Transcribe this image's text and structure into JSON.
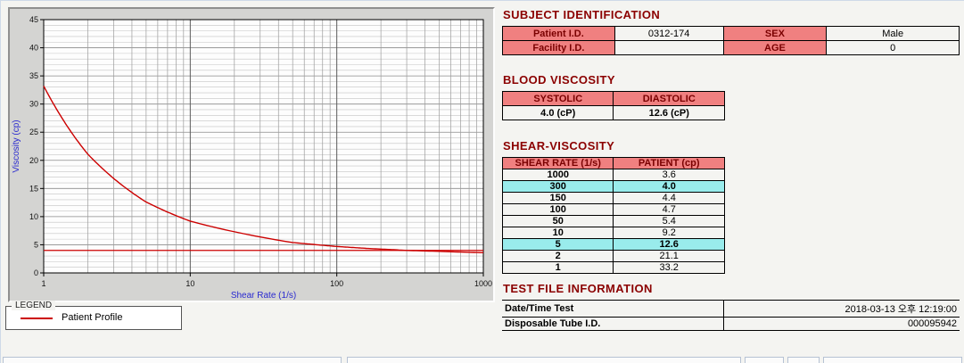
{
  "colors": {
    "heading": "#8b0000",
    "table_header_bg": "#f08080",
    "table_header_text": "#7a0000",
    "highlight_bg": "#99ecec",
    "curve": "#cc0000",
    "axis_title": "#2a2ad0"
  },
  "chart": {
    "legend_title": "LEGEND",
    "legend_series": "Patient Profile"
  },
  "chart_data": {
    "type": "line",
    "title": "",
    "xlabel": "Shear Rate (1/s)",
    "ylabel": "Viscosity (cp)",
    "x_scale": "log",
    "xlim": [
      1,
      1000
    ],
    "ylim": [
      0,
      45
    ],
    "x_ticks": [
      1,
      10,
      100,
      1000
    ],
    "y_ticks": [
      0,
      5,
      10,
      15,
      20,
      25,
      30,
      35,
      40,
      45
    ],
    "grid": true,
    "legend_position": "below-left",
    "series": [
      {
        "name": "Patient Profile",
        "color": "#cc0000",
        "x": [
          1,
          2,
          5,
          10,
          50,
          100,
          150,
          300,
          1000
        ],
        "y": [
          33.2,
          21.1,
          12.6,
          9.2,
          5.4,
          4.7,
          4.4,
          4.0,
          3.6
        ]
      }
    ],
    "reference_line": {
      "y": 4.0,
      "color": "#cc0000"
    }
  },
  "subject": {
    "title": "SUBJECT IDENTIFICATION",
    "rows": [
      {
        "l1": "Patient I.D.",
        "v1": "0312-174",
        "l2": "SEX",
        "v2": "Male"
      },
      {
        "l1": "Facility I.D.",
        "v1": "",
        "l2": "AGE",
        "v2": "0"
      }
    ]
  },
  "blood": {
    "title": "BLOOD VISCOSITY",
    "headers": [
      "SYSTOLIC",
      "DIASTOLIC"
    ],
    "values": [
      "4.0 (cP)",
      "12.6 (cP)"
    ]
  },
  "shear": {
    "title": "SHEAR-VISCOSITY",
    "headers": [
      "SHEAR RATE (1/s)",
      "PATIENT (cp)"
    ],
    "rows": [
      {
        "rate": "1000",
        "value": "3.6",
        "highlight": false
      },
      {
        "rate": "300",
        "value": "4.0",
        "highlight": true
      },
      {
        "rate": "150",
        "value": "4.4",
        "highlight": false
      },
      {
        "rate": "100",
        "value": "4.7",
        "highlight": false
      },
      {
        "rate": "50",
        "value": "5.4",
        "highlight": false
      },
      {
        "rate": "10",
        "value": "9.2",
        "highlight": false
      },
      {
        "rate": "5",
        "value": "12.6",
        "highlight": true
      },
      {
        "rate": "2",
        "value": "21.1",
        "highlight": false
      },
      {
        "rate": "1",
        "value": "33.2",
        "highlight": false
      }
    ]
  },
  "testfile": {
    "title": "TEST FILE INFORMATION",
    "rows": [
      {
        "label": "Date/Time Test",
        "value": "2018-03-13  오후 12:19:00"
      },
      {
        "label": "Disposable Tube I.D.",
        "value": "000095942"
      }
    ]
  }
}
